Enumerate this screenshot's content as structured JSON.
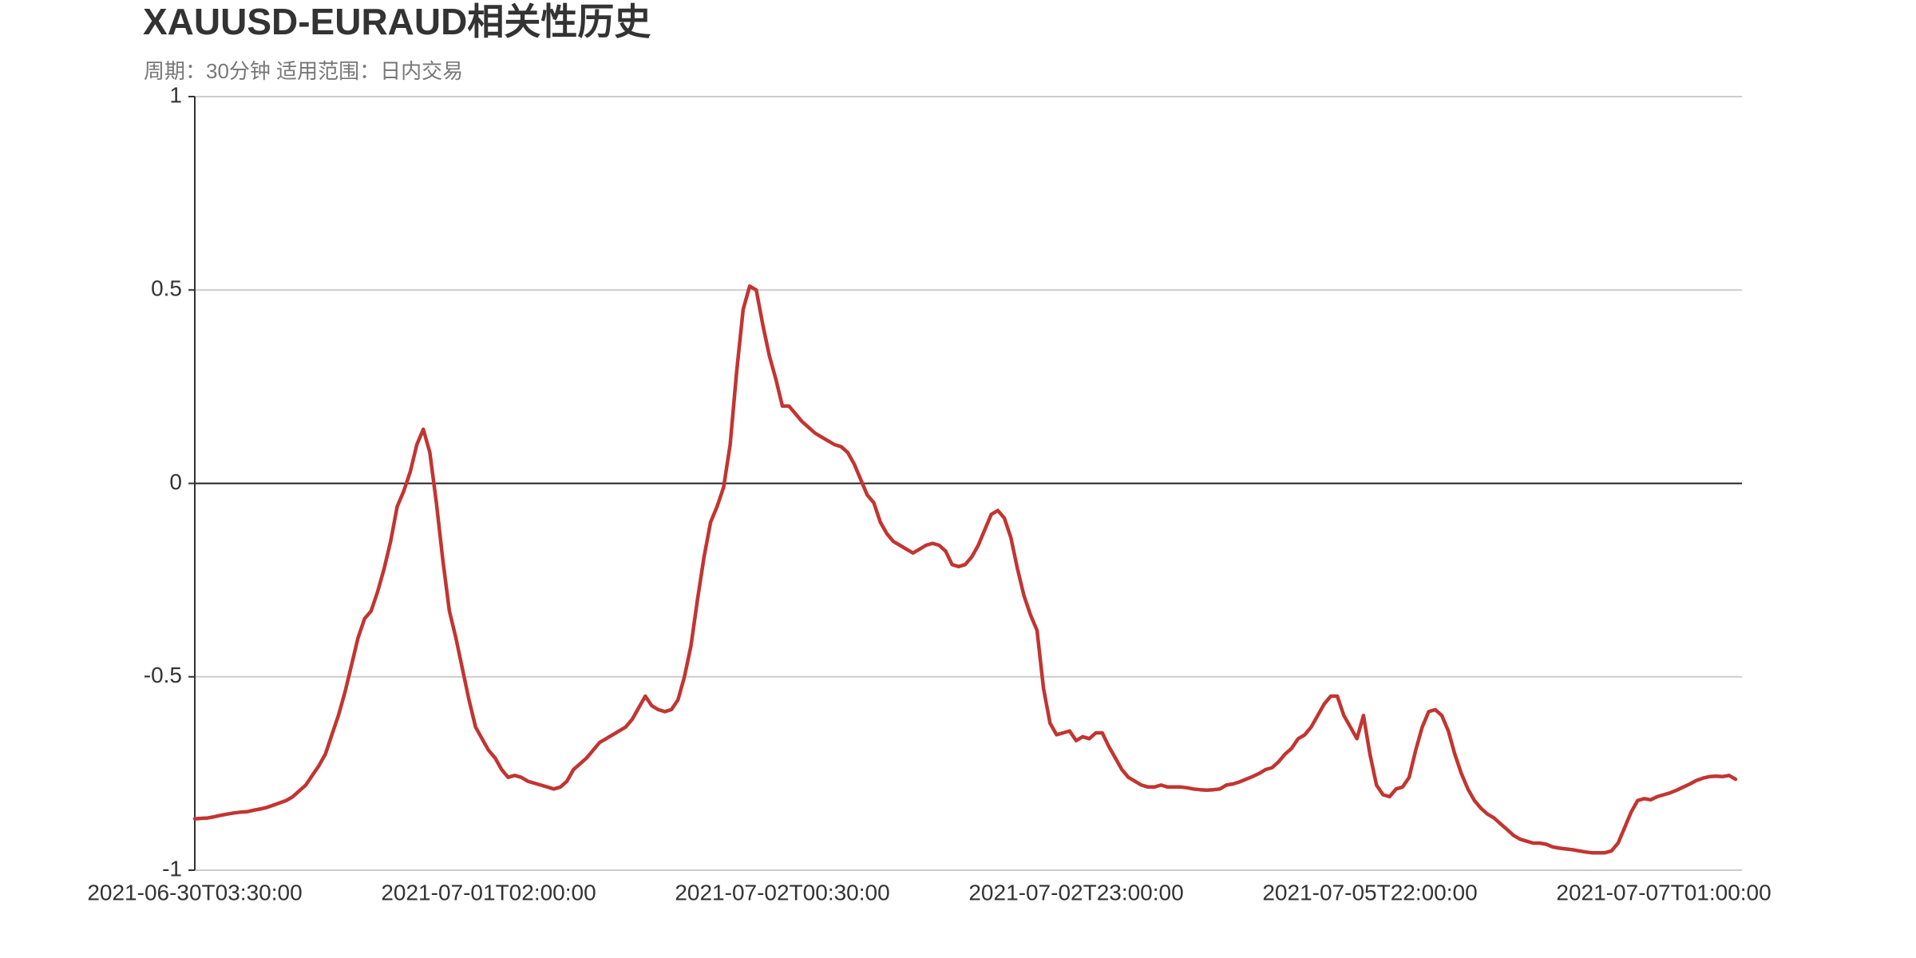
{
  "chart_data": {
    "type": "line",
    "title": "XAUUSD-EURAUD相关性历史",
    "subtitle": "周期：30分钟 适用范围：日内交易",
    "color": "#c23531",
    "ylim": [
      -1,
      1
    ],
    "yticks": [
      -1,
      -0.5,
      0,
      0.5,
      1
    ],
    "zero_line": true,
    "grid": true,
    "categories": [
      "2021-06-30T03:30:00",
      null,
      null,
      null,
      null,
      null,
      null,
      null,
      null,
      null,
      null,
      null,
      null,
      null,
      null,
      null,
      null,
      null,
      null,
      null,
      null,
      null,
      null,
      null,
      null,
      null,
      null,
      null,
      null,
      null,
      null,
      null,
      null,
      null,
      null,
      null,
      null,
      null,
      null,
      null,
      null,
      null,
      null,
      null,
      null,
      "2021-07-01T02:00:00",
      null,
      null,
      null,
      null,
      null,
      null,
      null,
      null,
      null,
      null,
      null,
      null,
      null,
      null,
      null,
      null,
      null,
      null,
      null,
      null,
      null,
      null,
      null,
      null,
      null,
      null,
      null,
      null,
      null,
      null,
      null,
      null,
      null,
      null,
      null,
      null,
      null,
      null,
      null,
      null,
      null,
      null,
      null,
      null,
      "2021-07-02T00:30:00",
      null,
      null,
      null,
      null,
      null,
      null,
      null,
      null,
      null,
      null,
      null,
      null,
      null,
      null,
      null,
      null,
      null,
      null,
      null,
      null,
      null,
      null,
      null,
      null,
      null,
      null,
      null,
      null,
      null,
      null,
      null,
      null,
      null,
      null,
      null,
      null,
      null,
      null,
      null,
      null,
      null,
      null,
      null,
      null,
      "2021-07-02T23:00:00",
      null,
      null,
      null,
      null,
      null,
      null,
      null,
      null,
      null,
      null,
      null,
      null,
      null,
      null,
      null,
      null,
      null,
      null,
      null,
      null,
      null,
      null,
      null,
      null,
      null,
      null,
      null,
      null,
      null,
      null,
      null,
      null,
      null,
      null,
      null,
      null,
      null,
      null,
      null,
      null,
      null,
      null,
      null,
      null,
      "2021-07-05T22:00:00",
      null,
      null,
      null,
      null,
      null,
      null,
      null,
      null,
      null,
      null,
      null,
      null,
      null,
      null,
      null,
      null,
      null,
      null,
      null,
      null,
      null,
      null,
      null,
      null,
      null,
      null,
      null,
      null,
      null,
      null,
      null,
      null,
      null,
      null,
      null,
      null,
      null,
      null,
      null,
      null,
      null,
      null,
      null,
      null,
      "2021-07-07T01:00:00",
      null,
      null,
      null,
      null,
      null,
      null,
      null,
      null,
      null,
      null,
      null
    ],
    "values": [
      -0.867,
      -0.866,
      -0.865,
      -0.862,
      -0.858,
      -0.855,
      -0.852,
      -0.85,
      -0.849,
      -0.845,
      -0.842,
      -0.838,
      -0.832,
      -0.826,
      -0.82,
      -0.81,
      -0.795,
      -0.78,
      -0.755,
      -0.73,
      -0.7,
      -0.65,
      -0.6,
      -0.54,
      -0.47,
      -0.4,
      -0.35,
      -0.33,
      -0.28,
      -0.22,
      -0.15,
      -0.06,
      -0.02,
      0.03,
      0.1,
      0.14,
      0.08,
      -0.05,
      -0.2,
      -0.33,
      -0.4,
      -0.48,
      -0.56,
      -0.63,
      -0.66,
      -0.69,
      -0.71,
      -0.74,
      -0.76,
      -0.755,
      -0.76,
      -0.77,
      -0.775,
      -0.78,
      -0.785,
      -0.79,
      -0.785,
      -0.77,
      -0.74,
      -0.725,
      -0.71,
      -0.69,
      -0.67,
      -0.66,
      -0.65,
      -0.64,
      -0.63,
      -0.61,
      -0.58,
      -0.55,
      -0.575,
      -0.585,
      -0.59,
      -0.585,
      -0.56,
      -0.5,
      -0.42,
      -0.3,
      -0.19,
      -0.1,
      -0.06,
      -0.01,
      0.1,
      0.29,
      0.45,
      0.51,
      0.5,
      0.41,
      0.33,
      0.27,
      0.2,
      0.2,
      0.18,
      0.16,
      0.145,
      0.13,
      0.12,
      0.11,
      0.1,
      0.095,
      0.08,
      0.05,
      0.01,
      -0.03,
      -0.05,
      -0.1,
      -0.13,
      -0.15,
      -0.16,
      -0.17,
      -0.18,
      -0.17,
      -0.16,
      -0.155,
      -0.16,
      -0.175,
      -0.21,
      -0.215,
      -0.21,
      -0.19,
      -0.16,
      -0.12,
      -0.08,
      -0.07,
      -0.09,
      -0.14,
      -0.22,
      -0.29,
      -0.34,
      -0.38,
      -0.53,
      -0.62,
      -0.65,
      -0.645,
      -0.64,
      -0.665,
      -0.655,
      -0.66,
      -0.645,
      -0.645,
      -0.68,
      -0.71,
      -0.74,
      -0.76,
      -0.77,
      -0.78,
      -0.785,
      -0.785,
      -0.78,
      -0.785,
      -0.785,
      -0.785,
      -0.787,
      -0.79,
      -0.792,
      -0.793,
      -0.792,
      -0.79,
      -0.78,
      -0.777,
      -0.772,
      -0.765,
      -0.758,
      -0.75,
      -0.74,
      -0.735,
      -0.72,
      -0.7,
      -0.685,
      -0.66,
      -0.65,
      -0.63,
      -0.6,
      -0.57,
      -0.55,
      -0.55,
      -0.6,
      -0.63,
      -0.66,
      -0.6,
      -0.7,
      -0.78,
      -0.805,
      -0.81,
      -0.79,
      -0.785,
      -0.76,
      -0.69,
      -0.63,
      -0.59,
      -0.585,
      -0.6,
      -0.64,
      -0.7,
      -0.75,
      -0.79,
      -0.82,
      -0.84,
      -0.855,
      -0.865,
      -0.88,
      -0.895,
      -0.91,
      -0.92,
      -0.925,
      -0.93,
      -0.93,
      -0.933,
      -0.94,
      -0.943,
      -0.945,
      -0.947,
      -0.95,
      -0.953,
      -0.955,
      -0.955,
      -0.955,
      -0.95,
      -0.93,
      -0.89,
      -0.85,
      -0.82,
      -0.815,
      -0.818,
      -0.81,
      -0.805,
      -0.8,
      -0.793,
      -0.785,
      -0.777,
      -0.768,
      -0.762,
      -0.758,
      -0.757,
      -0.758,
      -0.755,
      -0.765
    ]
  }
}
